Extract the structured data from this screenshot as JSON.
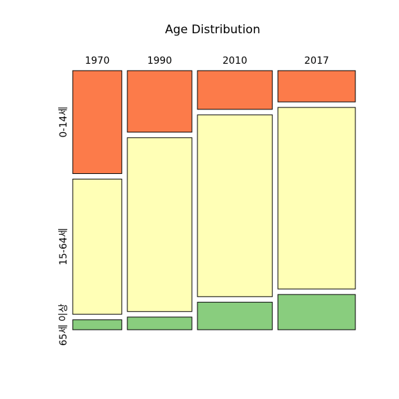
{
  "chart_data": {
    "type": "mosaic",
    "title": "Age Distribution",
    "columns": [
      "1970",
      "1990",
      "2010",
      "2017"
    ],
    "column_weights": [
      0.19,
      0.25,
      0.29,
      0.3
    ],
    "rows": [
      "0-14세",
      "15-64세",
      "65세 이상"
    ],
    "colors": [
      "#fc7b4a",
      "#ffffb6",
      "#89cd7e"
    ],
    "shares": [
      [
        0.415,
        0.545,
        0.04
      ],
      [
        0.248,
        0.701,
        0.051
      ],
      [
        0.156,
        0.733,
        0.111
      ],
      [
        0.126,
        0.732,
        0.142
      ]
    ]
  }
}
